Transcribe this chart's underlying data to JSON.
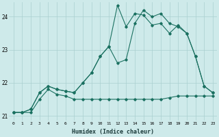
{
  "xlabel": "Humidex (Indice chaleur)",
  "ylabel": "",
  "bg_color": "#ceeaea",
  "grid_color": "#aacfcf",
  "line_color": "#1a7060",
  "xlim": [
    -0.5,
    23.5
  ],
  "ylim": [
    20.85,
    24.45
  ],
  "yticks": [
    21,
    22,
    23,
    24
  ],
  "xticks": [
    0,
    1,
    2,
    3,
    4,
    5,
    6,
    7,
    8,
    9,
    10,
    11,
    12,
    13,
    14,
    15,
    16,
    17,
    18,
    19,
    20,
    21,
    22,
    23
  ],
  "series1_x": [
    0,
    1,
    2,
    3,
    4,
    5,
    6,
    7,
    8,
    9,
    10,
    11,
    12,
    13,
    14,
    15,
    16,
    17,
    18,
    19,
    20,
    21,
    22,
    23
  ],
  "series1_y": [
    21.1,
    21.1,
    21.1,
    21.5,
    21.8,
    21.65,
    21.6,
    21.5,
    21.5,
    21.5,
    21.5,
    21.5,
    21.5,
    21.5,
    21.5,
    21.5,
    21.5,
    21.5,
    21.55,
    21.6,
    21.6,
    21.6,
    21.6,
    21.6
  ],
  "series2_x": [
    0,
    1,
    2,
    3,
    4,
    5,
    6,
    7,
    8,
    9,
    10,
    11,
    12,
    13,
    14,
    15,
    16,
    17,
    18,
    19,
    20,
    21,
    22,
    23
  ],
  "series2_y": [
    21.1,
    21.1,
    21.2,
    21.7,
    21.9,
    21.8,
    21.75,
    21.7,
    22.0,
    22.3,
    22.8,
    23.1,
    22.6,
    22.7,
    23.8,
    24.2,
    24.0,
    24.1,
    23.8,
    23.7,
    23.5,
    22.8,
    21.9,
    21.7
  ],
  "series3_x": [
    0,
    1,
    2,
    3,
    4,
    5,
    6,
    7,
    8,
    9,
    10,
    11,
    12,
    13,
    14,
    15,
    16,
    17,
    18,
    19,
    20,
    21,
    22,
    23
  ],
  "series3_y": [
    21.1,
    21.1,
    21.2,
    21.7,
    21.9,
    21.8,
    21.75,
    21.7,
    22.0,
    22.3,
    22.8,
    23.1,
    24.35,
    23.7,
    24.1,
    24.05,
    23.75,
    23.8,
    23.5,
    23.75,
    23.5,
    22.8,
    21.9,
    21.7
  ]
}
